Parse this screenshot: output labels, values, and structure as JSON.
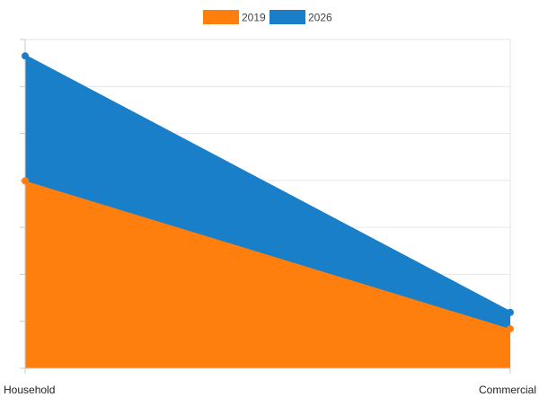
{
  "chart_data": {
    "type": "area",
    "stacked": true,
    "categories": [
      "Household",
      "Commercial"
    ],
    "series": [
      {
        "name": "2019",
        "values": [
          0.57,
          0.12
        ],
        "color": "#ff7f0e"
      },
      {
        "name": "2026",
        "values": [
          0.38,
          0.05
        ],
        "color": "#1a7fc9"
      }
    ],
    "ylim": [
      0,
      1.0
    ],
    "grid": true,
    "legend_position": "top",
    "y_tick_labels_visible": false
  }
}
